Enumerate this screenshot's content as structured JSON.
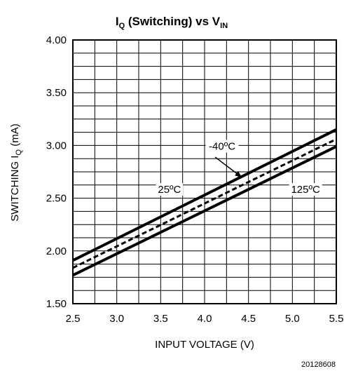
{
  "chart_data": {
    "type": "line",
    "title": {
      "main": "I",
      "main_sub": "Q",
      "rest": " (Switching) vs V",
      "rest_sub": "IN"
    },
    "xlabel": "INPUT VOLTAGE (V)",
    "ylabel": {
      "main": "SWITCHING I",
      "sub": "Q",
      "rest": " (mA)"
    },
    "xlim": [
      2.5,
      5.5
    ],
    "ylim": [
      1.5,
      4.0
    ],
    "x_ticks": [
      2.5,
      3.0,
      3.5,
      4.0,
      4.5,
      5.0,
      5.5
    ],
    "x_tick_labels": [
      "2.5",
      "3.0",
      "3.5",
      "4.0",
      "4.5",
      "5.0",
      "5.5"
    ],
    "y_ticks": [
      1.5,
      2.0,
      2.5,
      3.0,
      3.5,
      4.0
    ],
    "y_tick_labels": [
      "1.50",
      "2.00",
      "2.50",
      "3.00",
      "3.50",
      "4.00"
    ],
    "grid": {
      "x_step": 0.25,
      "y_step": 0.125
    },
    "series": [
      {
        "name": "-40ºC",
        "style": "solid",
        "x": [
          2.5,
          5.5
        ],
        "y": [
          1.91,
          3.15
        ]
      },
      {
        "name": "25ºC",
        "style": "dashed",
        "x": [
          2.5,
          5.5
        ],
        "y": [
          1.84,
          3.06
        ]
      },
      {
        "name": "125ºC",
        "style": "solid",
        "x": [
          2.5,
          5.5
        ],
        "y": [
          1.77,
          2.99
        ]
      }
    ],
    "annotations": [
      {
        "text": "-40ºC",
        "x": 4.2,
        "y": 2.96
      },
      {
        "text": "25ºC",
        "x": 3.6,
        "y": 2.55
      },
      {
        "text": "125ºC",
        "x": 5.15,
        "y": 2.55
      }
    ],
    "arrow": {
      "from": [
        4.12,
        2.89
      ],
      "to": [
        4.42,
        2.7
      ]
    },
    "figure_id": "20128608"
  }
}
